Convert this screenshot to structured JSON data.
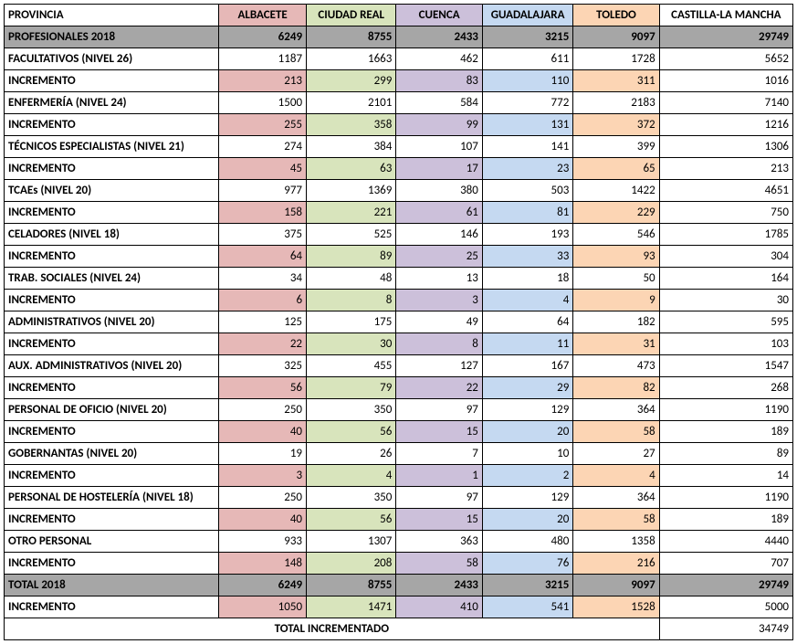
{
  "type": "table",
  "columns": {
    "label_header": "PROVINCIA",
    "provinces": [
      "ALBACETE",
      "CIUDAD REAL",
      "CUENCA",
      "GUADALAJARA",
      "TOLEDO"
    ],
    "total_header": "CASTILLA-LA MANCHA"
  },
  "header_colors": [
    "#e6b8b7",
    "#d8e4bc",
    "#ccc0da",
    "#c5d9f1",
    "#fcd5b4"
  ],
  "gray_bg": "#a6a6a6",
  "rows": [
    {
      "label": "PROFESIONALES 2018",
      "vals": [
        6249,
        8755,
        2433,
        3215,
        9097
      ],
      "total": 29749,
      "style": "gray"
    },
    {
      "label": "FACULTATIVOS (NIVEL 26)",
      "vals": [
        1187,
        1663,
        462,
        611,
        1728
      ],
      "total": 5652,
      "style": "plain"
    },
    {
      "label": "INCREMENTO",
      "vals": [
        213,
        299,
        83,
        110,
        311
      ],
      "total": 1016,
      "style": "color"
    },
    {
      "label": "ENFERMERÍA (NIVEL 24)",
      "vals": [
        1500,
        2101,
        584,
        772,
        2183
      ],
      "total": 7140,
      "style": "plain"
    },
    {
      "label": "INCREMENTO",
      "vals": [
        255,
        358,
        99,
        131,
        372
      ],
      "total": 1216,
      "style": "color"
    },
    {
      "label": "TÉCNICOS ESPECIALISTAS (NIVEL 21)",
      "vals": [
        274,
        384,
        107,
        141,
        399
      ],
      "total": 1306,
      "style": "plain"
    },
    {
      "label": "INCREMENTO",
      "vals": [
        45,
        63,
        17,
        23,
        65
      ],
      "total": 213,
      "style": "color"
    },
    {
      "label": "TCAEs (NIVEL 20)",
      "vals": [
        977,
        1369,
        380,
        503,
        1422
      ],
      "total": 4651,
      "style": "plain"
    },
    {
      "label": "INCREMENTO",
      "vals": [
        158,
        221,
        61,
        81,
        229
      ],
      "total": 750,
      "style": "color"
    },
    {
      "label": "CELADORES (NIVEL 18)",
      "vals": [
        375,
        525,
        146,
        193,
        546
      ],
      "total": 1785,
      "style": "plain"
    },
    {
      "label": "INCREMENTO",
      "vals": [
        64,
        89,
        25,
        33,
        93
      ],
      "total": 304,
      "style": "color"
    },
    {
      "label": "TRAB. SOCIALES (NIVEL 24)",
      "vals": [
        34,
        48,
        13,
        18,
        50
      ],
      "total": 164,
      "style": "plain"
    },
    {
      "label": "INCREMENTO",
      "vals": [
        6,
        8,
        3,
        4,
        9
      ],
      "total": 30,
      "style": "color"
    },
    {
      "label": "ADMINISTRATIVOS (NIVEL 20)",
      "vals": [
        125,
        175,
        49,
        64,
        182
      ],
      "total": 595,
      "style": "plain"
    },
    {
      "label": "INCREMENTO",
      "vals": [
        22,
        30,
        8,
        11,
        31
      ],
      "total": 103,
      "style": "color"
    },
    {
      "label": "AUX. ADMINISTRATIVOS (NIVEL 20)",
      "vals": [
        325,
        455,
        127,
        167,
        473
      ],
      "total": 1547,
      "style": "plain"
    },
    {
      "label": "INCREMENTO",
      "vals": [
        56,
        79,
        22,
        29,
        82
      ],
      "total": 268,
      "style": "color"
    },
    {
      "label": "PERSONAL DE OFICIO (NIVEL 20)",
      "vals": [
        250,
        350,
        97,
        129,
        364
      ],
      "total": 1190,
      "style": "plain"
    },
    {
      "label": "INCREMENTO",
      "vals": [
        40,
        56,
        15,
        20,
        58
      ],
      "total": 189,
      "style": "color"
    },
    {
      "label": "GOBERNANTAS (NIVEL 20)",
      "vals": [
        19,
        26,
        7,
        10,
        27
      ],
      "total": 89,
      "style": "plain"
    },
    {
      "label": "INCREMENTO",
      "vals": [
        3,
        4,
        1,
        2,
        4
      ],
      "total": 14,
      "style": "color"
    },
    {
      "label": "PERSONAL DE HOSTELERÍA (NIVEL 18)",
      "vals": [
        250,
        350,
        97,
        129,
        364
      ],
      "total": 1190,
      "style": "plain"
    },
    {
      "label": "INCREMENTO",
      "vals": [
        40,
        56,
        15,
        20,
        58
      ],
      "total": 189,
      "style": "color"
    },
    {
      "label": "OTRO PERSONAL",
      "vals": [
        933,
        1307,
        363,
        480,
        1358
      ],
      "total": 4440,
      "style": "plain"
    },
    {
      "label": "INCREMENTO",
      "vals": [
        148,
        208,
        58,
        76,
        216
      ],
      "total": 707,
      "style": "color"
    },
    {
      "label": "TOTAL 2018",
      "vals": [
        6249,
        8755,
        2433,
        3215,
        9097
      ],
      "total": 29749,
      "style": "gray"
    },
    {
      "label": "INCREMENTO",
      "vals": [
        1050,
        1471,
        410,
        541,
        1528
      ],
      "total": 5000,
      "style": "color"
    }
  ],
  "footer": {
    "label": "TOTAL INCREMENTADO",
    "value": 34749
  },
  "styling": {
    "font_family": "Calibri",
    "font_size_pt": 10,
    "border_color": "#000000",
    "background_color": "#ffffff"
  }
}
